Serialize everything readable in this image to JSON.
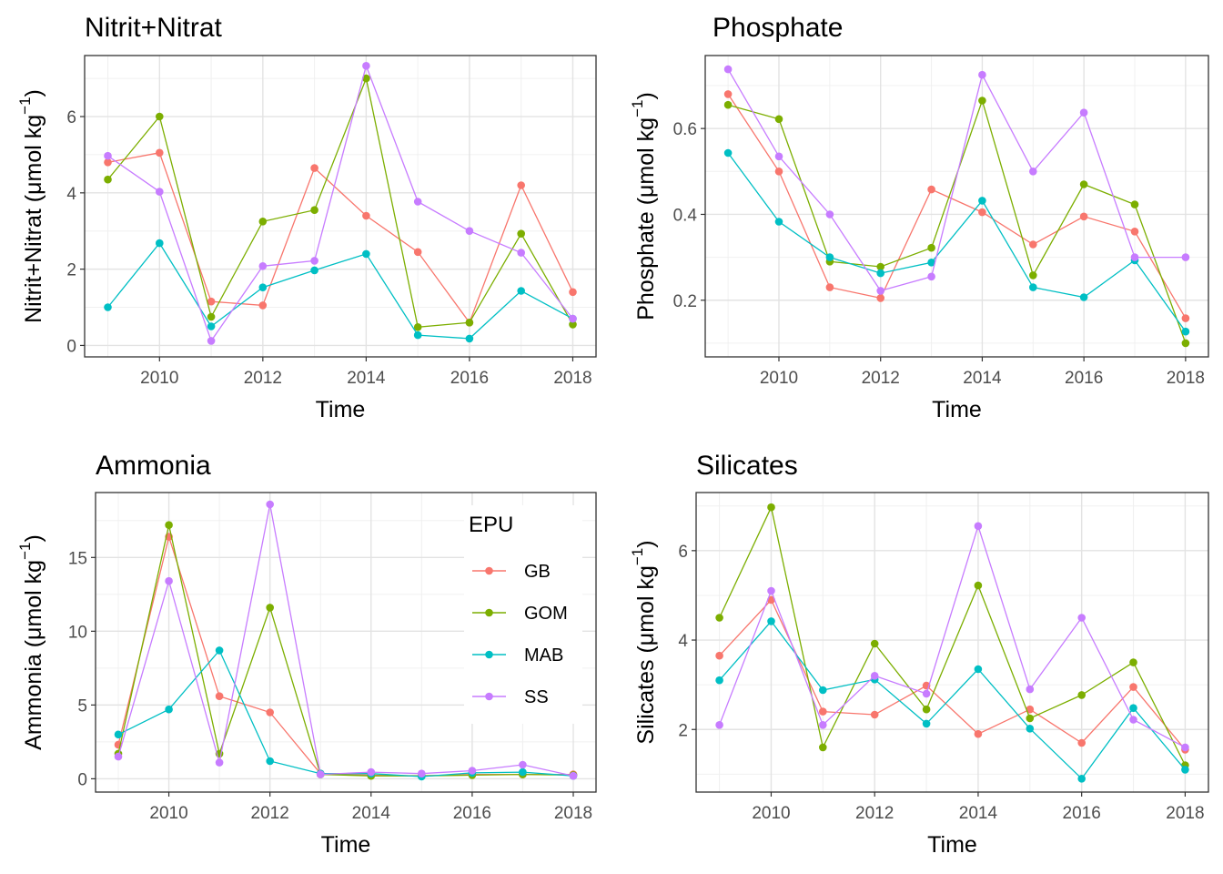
{
  "colors": {
    "GB": "#F8766D",
    "GOM": "#7CAE00",
    "MAB": "#00BFC4",
    "SS": "#C77CFF"
  },
  "legend": {
    "title": "EPU",
    "placement": "inside-top-right of Ammonia panel",
    "entries": [
      "GB",
      "GOM",
      "MAB",
      "SS"
    ]
  },
  "chart_data": [
    {
      "type": "line",
      "title": "Nitrit+Nitrat",
      "xlabel": "Time",
      "ylabel": "Nitrit+Nitrat (μmol kg⁻¹)",
      "ylabel_main": "Nitrit+Nitrat (",
      "ylabel_unit": "μmol kg",
      "ylabel_sup": "−1",
      "ylabel_close": ")",
      "x": [
        2009,
        2010,
        2011,
        2012,
        2013,
        2014,
        2015,
        2016,
        2017,
        2018
      ],
      "xticks": [
        "2010",
        "2012",
        "2014",
        "2016",
        "2018"
      ],
      "xlim": [
        2008.55,
        2018.45
      ],
      "yticks": [
        "0",
        "2",
        "4",
        "6"
      ],
      "ylim": [
        -0.3,
        7.6
      ],
      "grid": true,
      "series": [
        {
          "name": "GB",
          "values": [
            4.8,
            5.05,
            1.15,
            1.05,
            4.65,
            3.4,
            2.45,
            0.6,
            4.2,
            1.4
          ]
        },
        {
          "name": "GOM",
          "values": [
            4.35,
            6.0,
            0.75,
            3.25,
            3.55,
            7.0,
            0.48,
            0.6,
            2.93,
            0.55
          ]
        },
        {
          "name": "MAB",
          "values": [
            1.0,
            2.68,
            0.5,
            1.52,
            1.97,
            2.4,
            0.27,
            0.18,
            1.43,
            0.7
          ]
        },
        {
          "name": "SS",
          "values": [
            4.97,
            4.03,
            0.12,
            2.08,
            2.22,
            7.33,
            3.77,
            3.0,
            2.43,
            0.7
          ]
        }
      ]
    },
    {
      "type": "line",
      "title": "Phosphate",
      "xlabel": "Time",
      "ylabel": "Phosphate (μmol kg⁻¹)",
      "ylabel_main": "Phosphate (",
      "ylabel_unit": "μmol kg",
      "ylabel_sup": "−1",
      "ylabel_close": ")",
      "x": [
        2009,
        2010,
        2011,
        2012,
        2013,
        2014,
        2015,
        2016,
        2017,
        2018
      ],
      "xticks": [
        "2010",
        "2012",
        "2014",
        "2016",
        "2018"
      ],
      "xlim": [
        2008.55,
        2018.45
      ],
      "yticks": [
        "0.2",
        "0.4",
        "0.6"
      ],
      "ylim": [
        0.068,
        0.77
      ],
      "grid": true,
      "series": [
        {
          "name": "GB",
          "values": [
            0.68,
            0.5,
            0.23,
            0.205,
            0.458,
            0.405,
            0.33,
            0.395,
            0.36,
            0.158
          ]
        },
        {
          "name": "GOM",
          "values": [
            0.655,
            0.622,
            0.29,
            0.278,
            0.322,
            0.665,
            0.258,
            0.47,
            0.423,
            0.1
          ]
        },
        {
          "name": "MAB",
          "values": [
            0.543,
            0.383,
            0.3,
            0.263,
            0.288,
            0.432,
            0.23,
            0.207,
            0.293,
            0.127
          ]
        },
        {
          "name": "SS",
          "values": [
            0.738,
            0.535,
            0.4,
            0.222,
            0.255,
            0.725,
            0.5,
            0.637,
            0.3,
            0.3
          ]
        }
      ]
    },
    {
      "type": "line",
      "title": "Ammonia",
      "xlabel": "Time",
      "ylabel": "Ammonia (μmol kg⁻¹)",
      "ylabel_main": "Ammonia (",
      "ylabel_unit": "μmol kg",
      "ylabel_sup": "−1",
      "ylabel_close": ")",
      "x": [
        2009,
        2010,
        2011,
        2012,
        2013,
        2014,
        2015,
        2016,
        2017,
        2018
      ],
      "xticks": [
        "2010",
        "2012",
        "2014",
        "2016",
        "2018"
      ],
      "xlim": [
        2008.55,
        2018.45
      ],
      "yticks": [
        "0",
        "5",
        "10",
        "15"
      ],
      "ylim": [
        -0.9,
        19.4
      ],
      "grid": true,
      "series": [
        {
          "name": "GB",
          "values": [
            2.3,
            16.4,
            5.6,
            4.5,
            0.35,
            0.25,
            0.2,
            0.3,
            0.3,
            0.3
          ]
        },
        {
          "name": "GOM",
          "values": [
            1.7,
            17.2,
            1.7,
            11.6,
            0.3,
            0.2,
            0.2,
            0.25,
            0.3,
            0.25
          ]
        },
        {
          "name": "MAB",
          "values": [
            3.0,
            4.7,
            8.7,
            1.2,
            0.35,
            0.35,
            0.15,
            0.4,
            0.45,
            0.2
          ]
        },
        {
          "name": "SS",
          "values": [
            1.5,
            13.4,
            1.1,
            18.6,
            0.3,
            0.45,
            0.35,
            0.55,
            0.95,
            0.2
          ]
        }
      ]
    },
    {
      "type": "line",
      "title": "Silicates",
      "xlabel": "Time",
      "ylabel": "Silicates (μmol kg⁻¹)",
      "ylabel_main": "Silicates (",
      "ylabel_unit": "μmol kg",
      "ylabel_sup": "−1",
      "ylabel_close": ")",
      "x": [
        2009,
        2010,
        2011,
        2012,
        2013,
        2014,
        2015,
        2016,
        2017,
        2018
      ],
      "xticks": [
        "2010",
        "2012",
        "2014",
        "2016",
        "2018"
      ],
      "xlim": [
        2008.55,
        2018.45
      ],
      "yticks": [
        "2",
        "4",
        "6"
      ],
      "ylim": [
        0.6,
        7.3
      ],
      "grid": true,
      "series": [
        {
          "name": "GB",
          "values": [
            3.65,
            4.9,
            2.4,
            2.33,
            2.98,
            1.9,
            2.45,
            1.7,
            2.95,
            1.55
          ]
        },
        {
          "name": "GOM",
          "values": [
            4.5,
            6.97,
            1.6,
            3.92,
            2.45,
            5.22,
            2.25,
            2.77,
            3.5,
            1.2
          ]
        },
        {
          "name": "MAB",
          "values": [
            3.1,
            4.42,
            2.88,
            3.12,
            2.13,
            3.35,
            2.02,
            0.9,
            2.48,
            1.1
          ]
        },
        {
          "name": "SS",
          "values": [
            2.1,
            5.1,
            2.1,
            3.2,
            2.8,
            6.55,
            2.9,
            4.5,
            2.22,
            1.6
          ]
        }
      ]
    }
  ]
}
